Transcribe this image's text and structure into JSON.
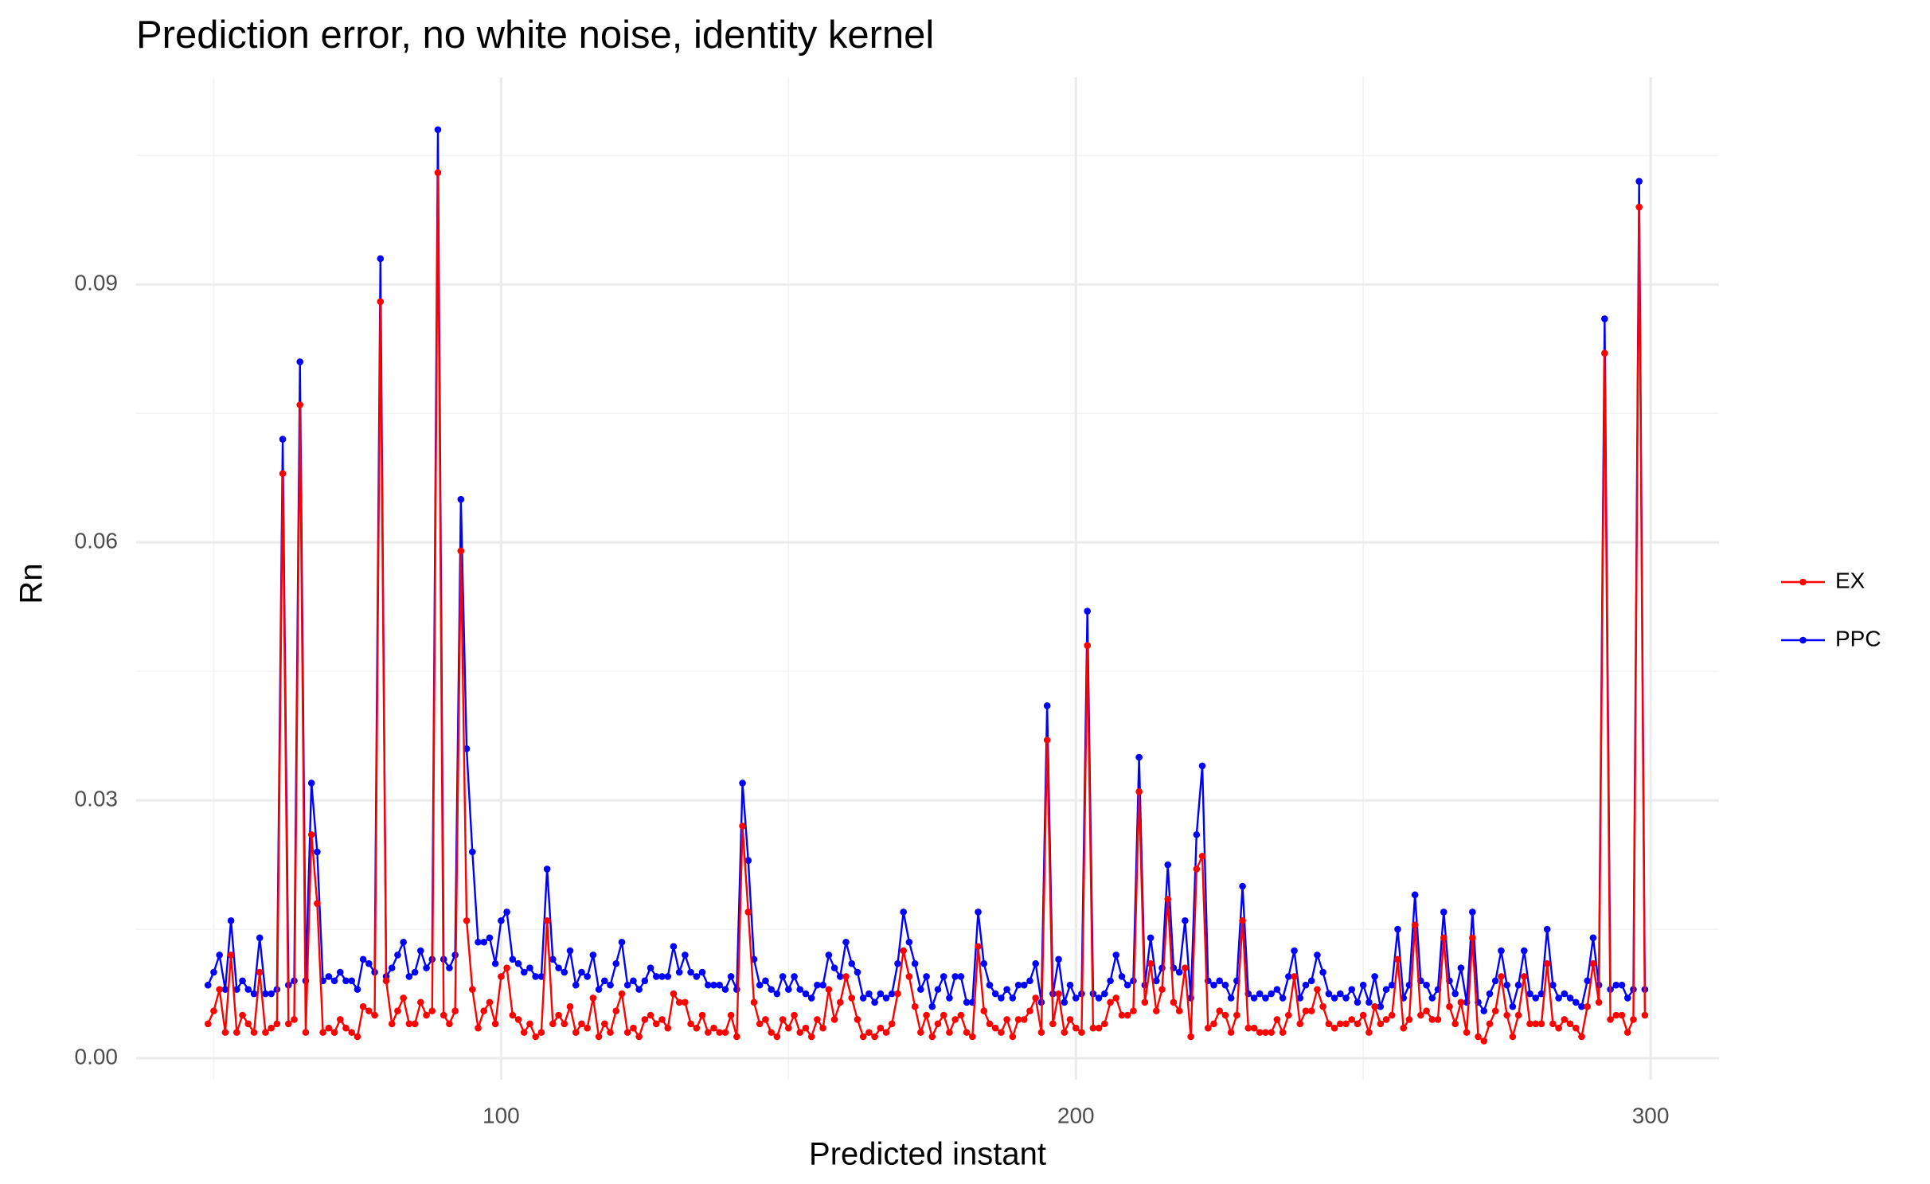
{
  "chart_data": {
    "type": "line",
    "title": "Prediction error, no white noise, identity kernel",
    "xlabel": "Predicted instant",
    "ylabel": "Rn",
    "xlim": [
      36.5,
      311.9
    ],
    "ylim": [
      -0.0025,
      0.1141
    ],
    "xticks": [
      100,
      200,
      300
    ],
    "yticks": [
      {
        "value": 0,
        "label": "0.00"
      },
      0.03,
      0.06,
      0.09
    ],
    "xminor": [
      50,
      150,
      250
    ],
    "yminor": [
      0.015,
      0.045,
      0.075,
      0.105
    ],
    "grid": true,
    "legend": "right",
    "x": [
      49,
      50,
      51,
      52,
      53,
      54,
      55,
      56,
      57,
      58,
      59,
      60,
      61,
      62,
      63,
      64,
      65,
      66,
      67,
      68,
      69,
      70,
      71,
      72,
      73,
      74,
      75,
      76,
      77,
      78,
      79,
      80,
      81,
      82,
      83,
      84,
      85,
      86,
      87,
      88,
      89,
      90,
      91,
      92,
      93,
      94,
      95,
      96,
      97,
      98,
      99,
      100,
      101,
      102,
      103,
      104,
      105,
      106,
      107,
      108,
      109,
      110,
      111,
      112,
      113,
      114,
      115,
      116,
      117,
      118,
      119,
      120,
      121,
      122,
      123,
      124,
      125,
      126,
      127,
      128,
      129,
      130,
      131,
      132,
      133,
      134,
      135,
      136,
      137,
      138,
      139,
      140,
      141,
      142,
      143,
      144,
      145,
      146,
      147,
      148,
      149,
      150,
      151,
      152,
      153,
      154,
      155,
      156,
      157,
      158,
      159,
      160,
      161,
      162,
      163,
      164,
      165,
      166,
      167,
      168,
      169,
      170,
      171,
      172,
      173,
      174,
      175,
      176,
      177,
      178,
      179,
      180,
      181,
      182,
      183,
      184,
      185,
      186,
      187,
      188,
      189,
      190,
      191,
      192,
      193,
      194,
      195,
      196,
      197,
      198,
      199,
      200,
      201,
      202,
      203,
      204,
      205,
      206,
      207,
      208,
      209,
      210,
      211,
      212,
      213,
      214,
      215,
      216,
      217,
      218,
      219,
      220,
      221,
      222,
      223,
      224,
      225,
      226,
      227,
      228,
      229,
      230,
      231,
      232,
      233,
      234,
      235,
      236,
      237,
      238,
      239,
      240,
      241,
      242,
      243,
      244,
      245,
      246,
      247,
      248,
      249,
      250,
      251,
      252,
      253,
      254,
      255,
      256,
      257,
      258,
      259,
      260,
      261,
      262,
      263,
      264,
      265,
      266,
      267,
      268,
      269,
      270,
      271,
      272,
      273,
      274,
      275,
      276,
      277,
      278,
      279,
      280,
      281,
      282,
      283,
      284,
      285,
      286,
      287,
      288,
      289,
      290,
      291,
      292,
      293,
      294,
      295,
      296,
      297,
      298,
      299
    ],
    "series": [
      {
        "name": "EX",
        "color": "#ff0000",
        "values": [
          0.004,
          0.0055,
          0.008,
          0.003,
          0.012,
          0.003,
          0.005,
          0.004,
          0.003,
          0.01,
          0.003,
          0.0035,
          0.004,
          0.068,
          0.004,
          0.0045,
          0.076,
          0.003,
          0.026,
          0.018,
          0.003,
          0.0035,
          0.003,
          0.0045,
          0.0035,
          0.003,
          0.0025,
          0.006,
          0.0055,
          0.005,
          0.088,
          0.009,
          0.004,
          0.0055,
          0.007,
          0.004,
          0.004,
          0.0065,
          0.005,
          0.0055,
          0.103,
          0.005,
          0.004,
          0.0055,
          0.059,
          0.016,
          0.008,
          0.0035,
          0.0055,
          0.0065,
          0.004,
          0.0095,
          0.0105,
          0.005,
          0.0045,
          0.003,
          0.004,
          0.0025,
          0.003,
          0.016,
          0.004,
          0.005,
          0.004,
          0.006,
          0.003,
          0.004,
          0.0035,
          0.007,
          0.0025,
          0.004,
          0.003,
          0.0055,
          0.0075,
          0.003,
          0.0035,
          0.0025,
          0.0045,
          0.005,
          0.004,
          0.0045,
          0.0035,
          0.0075,
          0.0065,
          0.0065,
          0.004,
          0.0035,
          0.005,
          0.003,
          0.0035,
          0.003,
          0.003,
          0.005,
          0.0025,
          0.027,
          0.017,
          0.0065,
          0.004,
          0.0045,
          0.003,
          0.0025,
          0.0045,
          0.0035,
          0.005,
          0.003,
          0.0035,
          0.0025,
          0.0045,
          0.0035,
          0.008,
          0.0045,
          0.0065,
          0.0095,
          0.007,
          0.0045,
          0.0025,
          0.003,
          0.0025,
          0.0035,
          0.003,
          0.004,
          0.0075,
          0.0125,
          0.0095,
          0.006,
          0.003,
          0.005,
          0.0025,
          0.004,
          0.005,
          0.003,
          0.0045,
          0.005,
          0.003,
          0.0025,
          0.013,
          0.0055,
          0.004,
          0.0035,
          0.003,
          0.0045,
          0.0025,
          0.0045,
          0.0045,
          0.0055,
          0.007,
          0.003,
          0.037,
          0.004,
          0.0075,
          0.003,
          0.0045,
          0.0035,
          0.003,
          0.048,
          0.0035,
          0.0035,
          0.004,
          0.0065,
          0.007,
          0.005,
          0.005,
          0.0055,
          0.031,
          0.0065,
          0.011,
          0.0055,
          0.008,
          0.0185,
          0.0065,
          0.0055,
          0.0105,
          0.0025,
          0.022,
          0.0235,
          0.0035,
          0.004,
          0.0055,
          0.005,
          0.003,
          0.005,
          0.016,
          0.0035,
          0.0035,
          0.003,
          0.003,
          0.003,
          0.0045,
          0.003,
          0.005,
          0.0095,
          0.004,
          0.0055,
          0.0055,
          0.008,
          0.006,
          0.004,
          0.0035,
          0.004,
          0.004,
          0.0045,
          0.004,
          0.005,
          0.003,
          0.006,
          0.004,
          0.0045,
          0.005,
          0.0115,
          0.0035,
          0.0045,
          0.0155,
          0.005,
          0.0055,
          0.0045,
          0.0045,
          0.014,
          0.006,
          0.004,
          0.0065,
          0.003,
          0.014,
          0.0025,
          0.002,
          0.004,
          0.0055,
          0.0095,
          0.005,
          0.0025,
          0.005,
          0.0095,
          0.004,
          0.004,
          0.004,
          0.011,
          0.004,
          0.0035,
          0.0045,
          0.004,
          0.0035,
          0.0025,
          0.006,
          0.011,
          0.0065,
          0.082,
          0.0045,
          0.005,
          0.005,
          0.003,
          0.0045,
          0.099,
          0.005
        ]
      },
      {
        "name": "PPC",
        "color": "#0000ff",
        "values": [
          0.0085,
          0.01,
          0.012,
          0.008,
          0.016,
          0.008,
          0.009,
          0.008,
          0.0075,
          0.014,
          0.0075,
          0.0075,
          0.008,
          0.072,
          0.0085,
          0.009,
          0.081,
          0.009,
          0.032,
          0.024,
          0.009,
          0.0095,
          0.009,
          0.01,
          0.009,
          0.009,
          0.008,
          0.0115,
          0.011,
          0.01,
          0.093,
          0.0095,
          0.0105,
          0.012,
          0.0135,
          0.0095,
          0.01,
          0.0125,
          0.0105,
          0.0115,
          0.108,
          0.0115,
          0.0105,
          0.012,
          0.065,
          0.036,
          0.024,
          0.0135,
          0.0135,
          0.014,
          0.011,
          0.016,
          0.017,
          0.0115,
          0.011,
          0.01,
          0.0105,
          0.0095,
          0.0095,
          0.022,
          0.0115,
          0.0105,
          0.01,
          0.0125,
          0.0085,
          0.01,
          0.0095,
          0.012,
          0.008,
          0.009,
          0.0085,
          0.011,
          0.0135,
          0.0085,
          0.009,
          0.008,
          0.009,
          0.0105,
          0.0095,
          0.0095,
          0.0095,
          0.013,
          0.01,
          0.012,
          0.01,
          0.0095,
          0.01,
          0.0085,
          0.0085,
          0.0085,
          0.008,
          0.0095,
          0.008,
          0.032,
          0.023,
          0.0115,
          0.0085,
          0.009,
          0.008,
          0.0075,
          0.0095,
          0.008,
          0.0095,
          0.008,
          0.0075,
          0.007,
          0.0085,
          0.0085,
          0.012,
          0.0105,
          0.0095,
          0.0135,
          0.011,
          0.01,
          0.007,
          0.0075,
          0.0065,
          0.0075,
          0.007,
          0.0075,
          0.011,
          0.017,
          0.0135,
          0.011,
          0.008,
          0.0095,
          0.006,
          0.008,
          0.0095,
          0.007,
          0.0095,
          0.0095,
          0.0065,
          0.0065,
          0.017,
          0.011,
          0.0085,
          0.0075,
          0.007,
          0.008,
          0.007,
          0.0085,
          0.0085,
          0.009,
          0.011,
          0.0065,
          0.041,
          0.0075,
          0.0115,
          0.0065,
          0.0085,
          0.007,
          0.0075,
          0.052,
          0.0075,
          0.007,
          0.0075,
          0.009,
          0.012,
          0.0095,
          0.0085,
          0.009,
          0.035,
          0.0085,
          0.014,
          0.009,
          0.0105,
          0.0225,
          0.0105,
          0.01,
          0.016,
          0.007,
          0.026,
          0.034,
          0.009,
          0.0085,
          0.009,
          0.0085,
          0.007,
          0.009,
          0.02,
          0.0075,
          0.007,
          0.0075,
          0.007,
          0.0075,
          0.008,
          0.007,
          0.0095,
          0.0125,
          0.007,
          0.0085,
          0.009,
          0.012,
          0.01,
          0.0075,
          0.007,
          0.0075,
          0.007,
          0.008,
          0.0065,
          0.0085,
          0.0065,
          0.0095,
          0.006,
          0.008,
          0.0085,
          0.015,
          0.007,
          0.0085,
          0.019,
          0.009,
          0.0085,
          0.007,
          0.008,
          0.017,
          0.009,
          0.0075,
          0.0105,
          0.0065,
          0.017,
          0.0065,
          0.0055,
          0.0075,
          0.009,
          0.0125,
          0.0085,
          0.006,
          0.0085,
          0.0125,
          0.0075,
          0.007,
          0.0075,
          0.015,
          0.0085,
          0.007,
          0.0075,
          0.007,
          0.0065,
          0.006,
          0.009,
          0.014,
          0.0085,
          0.086,
          0.008,
          0.0085,
          0.0085,
          0.007,
          0.008,
          0.102,
          0.008
        ]
      }
    ]
  }
}
